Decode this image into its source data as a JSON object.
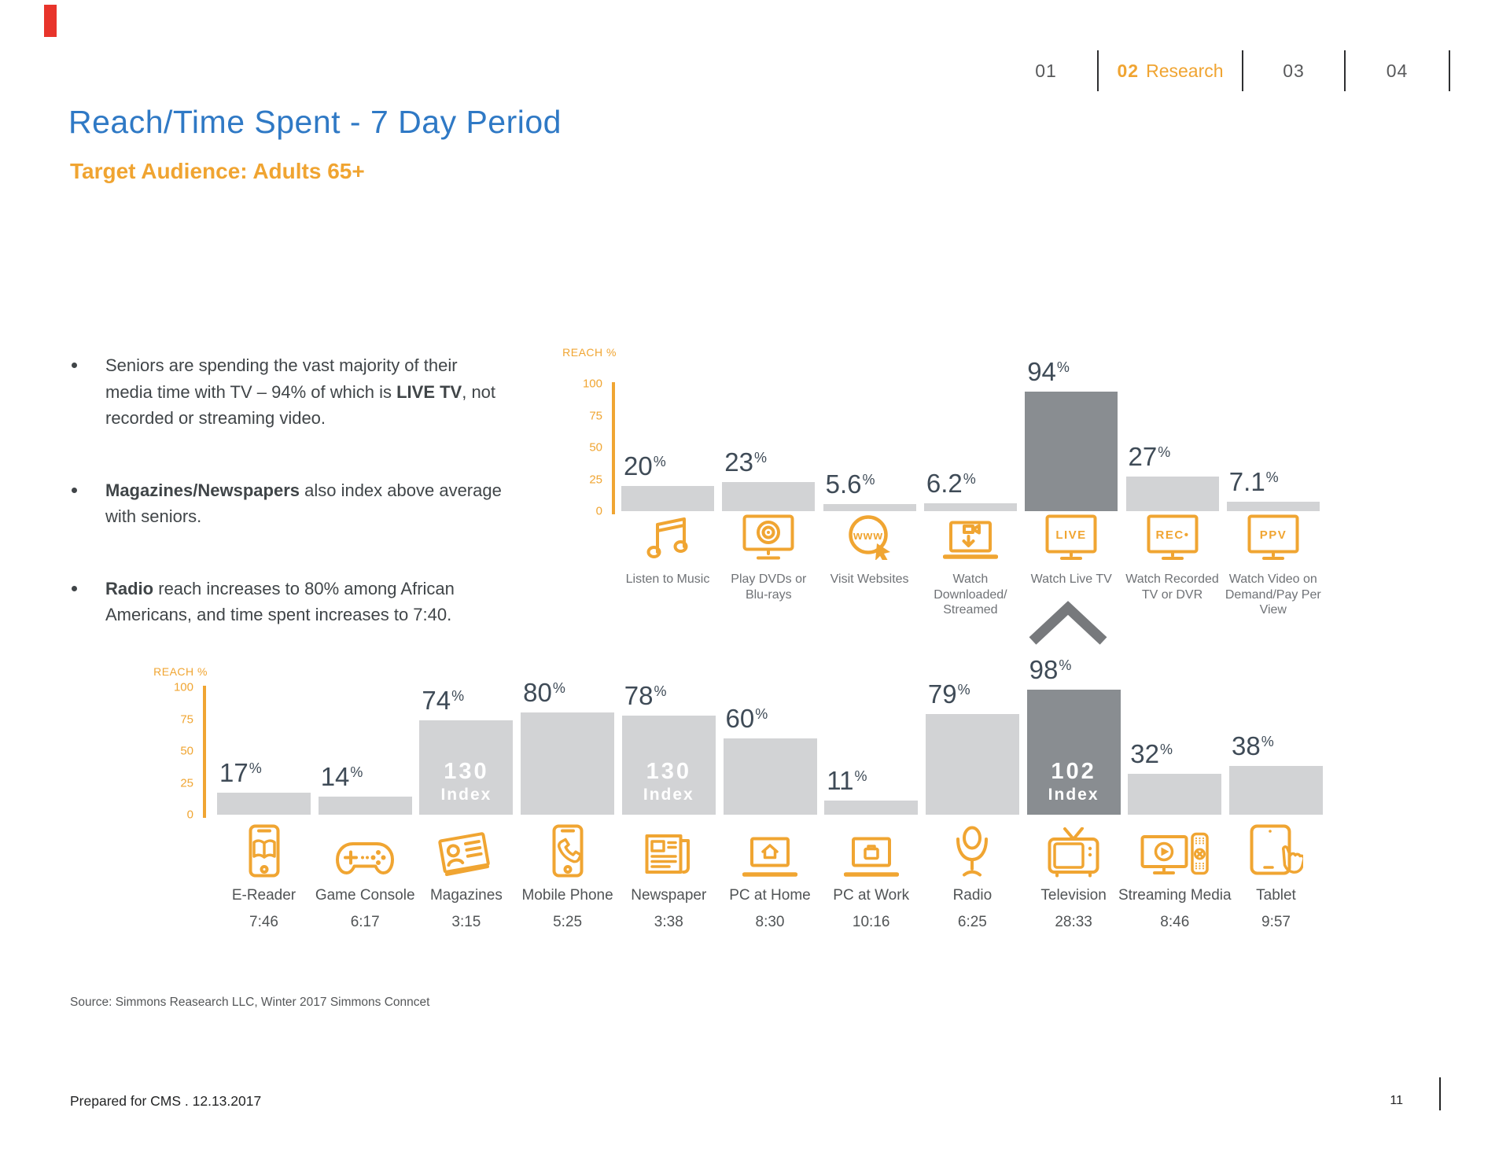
{
  "page": {
    "corner_mark_color": "#E8342B",
    "nav": {
      "items": [
        {
          "num": "01",
          "label": "",
          "active": false
        },
        {
          "num": "02",
          "label": "Research",
          "active": true
        },
        {
          "num": "03",
          "label": "",
          "active": false
        },
        {
          "num": "04",
          "label": "",
          "active": false
        }
      ]
    },
    "title": "Reach/Time Spent - 7 Day Period",
    "subtitle": "Target Audience: Adults 65+",
    "bullets": [
      {
        "lines": [
          [
            {
              "t": "Seniors are spending the vast majority of their"
            }
          ],
          [
            {
              "t": "media time with TV – 94% of which is "
            },
            {
              "t": "LIVE TV",
              "b": true
            },
            {
              "t": ", not"
            }
          ],
          [
            {
              "t": "recorded or streaming video."
            }
          ]
        ]
      },
      {
        "lines": [
          [
            {
              "t": "Magazines/Newspapers",
              "b": true
            },
            {
              "t": " also index above average"
            }
          ],
          [
            {
              "t": "with seniors."
            }
          ]
        ]
      },
      {
        "lines": [
          [
            {
              "t": "Radio",
              "b": true
            },
            {
              "t": " reach increases to 80% among African"
            }
          ],
          [
            {
              "t": "Americans, and time spent increases to 7:40."
            }
          ]
        ]
      }
    ],
    "source": "Source: Simmons Reasearch LLC, Winter 2017 Simmons Conncet",
    "footer": {
      "left": "Prepared for CMS . 12.13.2017",
      "page_number": "11"
    }
  },
  "colors": {
    "accent_orange": "#F0A532",
    "title_blue": "#2F79C5",
    "bar_light": "#D2D3D5",
    "bar_dark": "#898D91",
    "value_text": "#3F4B57",
    "chevron_gray": "#77797C",
    "red_mark": "#E8342B"
  },
  "chart_data": [
    {
      "id": "tv-activities-reach",
      "type": "bar",
      "ylabel": "REACH %",
      "ylim": [
        0,
        100
      ],
      "yticks": [
        "100",
        "75",
        "50",
        "25",
        "0"
      ],
      "unit": "%",
      "legend_position": "none",
      "grid": false,
      "categories": [
        "Listen to Music",
        "Play DVDs or\nBlu-rays",
        "Visit Websites",
        "Watch\nDownloaded/\nStreamed",
        "Watch Live TV",
        "Watch Recorded\nTV or DVR",
        "Watch Video on\nDemand/Pay Per\nView"
      ],
      "values": [
        20,
        23,
        5.6,
        6.2,
        94,
        27,
        7.1
      ],
      "value_labels": [
        "20",
        "23",
        "5.6",
        "6.2",
        "94",
        "27",
        "7.1"
      ],
      "highlight_index": 4,
      "icons": [
        "music-note-icon",
        "tv-disc-icon",
        "www-globe-icon",
        "laptop-download-icon",
        "tv-live-icon",
        "tv-rec-icon",
        "tv-ppv-icon"
      ],
      "icon_texts": [
        "",
        "",
        "www",
        "",
        "LIVE",
        "REC•",
        "PPV"
      ]
    },
    {
      "id": "media-devices-reach",
      "type": "bar",
      "ylabel": "REACH %",
      "ylim": [
        0,
        100
      ],
      "yticks": [
        "100",
        "75",
        "50",
        "25",
        "0"
      ],
      "unit": "%",
      "legend_position": "none",
      "grid": false,
      "categories": [
        "E-Reader",
        "Game Console",
        "Magazines",
        "Mobile Phone",
        "Newspaper",
        "PC at Home",
        "PC at Work",
        "Radio",
        "Television",
        "Streaming Media",
        "Tablet"
      ],
      "values": [
        17,
        14,
        74,
        80,
        78,
        60,
        11,
        79,
        98,
        32,
        38
      ],
      "value_labels": [
        "17",
        "14",
        "74",
        "80",
        "78",
        "60",
        "11",
        "79",
        "98",
        "32",
        "38"
      ],
      "time_spent": [
        "7:46",
        "6:17",
        "3:15",
        "5:25",
        "3:38",
        "8:30",
        "10:16",
        "6:25",
        "28:33",
        "8:46",
        "9:57"
      ],
      "index_values": [
        "",
        "",
        "130",
        "",
        "130",
        "",
        "",
        "",
        "102",
        "",
        ""
      ],
      "index_word": "Index",
      "highlight_index": 8,
      "icons": [
        "e-reader-icon",
        "game-console-icon",
        "magazines-icon",
        "mobile-phone-icon",
        "newspaper-icon",
        "pc-home-icon",
        "pc-work-icon",
        "radio-mic-icon",
        "television-icon",
        "streaming-media-icon",
        "tablet-icon"
      ]
    }
  ],
  "callout": {
    "shape": "chevron-up",
    "meaning": "TV activities breakdown points to Television bar"
  }
}
